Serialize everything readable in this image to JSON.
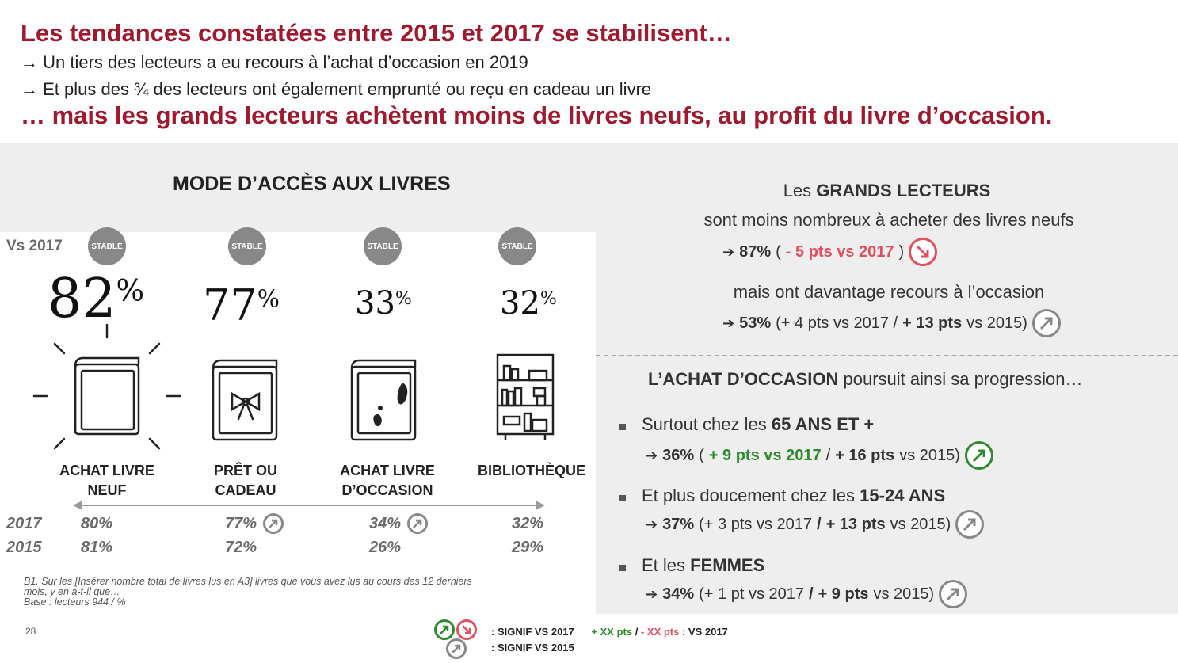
{
  "header": {
    "title1": "Les tendances constatées entre 2015 et 2017 se stabilisent…",
    "sub1": "→ Un tiers des lecteurs a eu recours à l’achat d’occasion en 2019",
    "sub2": "→ Et plus des ¾ des lecteurs ont également emprunté ou reçu en cadeau un livre",
    "title2": "… mais les grands lecteurs achètent moins de livres neufs, au profit du livre d’occasion."
  },
  "left": {
    "title": "MODE D’ACCÈS AUX LIVRES",
    "vs_label": "Vs 2017",
    "stable_label": "STABLE",
    "items": [
      {
        "pct": "82",
        "label1": "ACHAT LIVRE",
        "label2": "NEUF",
        "v2017": "80%",
        "v2015": "81%",
        "icon": "new-book-icon"
      },
      {
        "pct": "77",
        "label1": "PRÊT OU",
        "label2": "CADEAU",
        "v2017": "77%",
        "v2015": "72%",
        "icon": "gift-book-icon"
      },
      {
        "pct": "33",
        "label1": "ACHAT LIVRE",
        "label2": "D’OCCASION",
        "v2017": "34%",
        "v2015": "26%",
        "icon": "used-book-icon"
      },
      {
        "pct": "32",
        "label1": "BIBLIOTHÈQUE",
        "label2": "",
        "v2017": "32%",
        "v2015": "29%",
        "icon": "library-shelf-icon"
      }
    ],
    "pct_symbol": "%",
    "year1": "2017",
    "year2": "2015",
    "note1": "B1. Sur les [Insérer nombre total de livres lus en A3] livres que vous avez lus au cours des 12 derniers",
    "note2": "mois, y en a-t-il que…",
    "note3": "Base : lecteurs 944 / %",
    "page_number": "28"
  },
  "right": {
    "gl_pre": "Les ",
    "gl_bold": "GRANDS LECTEURS",
    "gl_line2": "sont moins nombreux à acheter des livres neufs",
    "gl_stat1_val": "87%",
    "gl_stat1_open": " (",
    "gl_stat1_delta": "- 5 pts vs 2017",
    "gl_stat1_close": ")",
    "gl_line3": "mais ont davantage recours à l’occasion",
    "gl_stat2_val": "53%",
    "gl_stat2_a": " (+ 4 pts vs 2017 / ",
    "gl_stat2_b": "+ 13 pts",
    "gl_stat2_c": " vs 2015)",
    "ao_bold": "L’ACHAT D’OCCASION",
    "ao_rest": " poursuit ainsi sa progression…",
    "b1_pre": "Surtout chez les ",
    "b1_bold": "65 ANS ET +",
    "b1_val": "36%",
    "b1_open": " (",
    "b1_delta": "+ 9 pts vs 2017",
    "b1_sep": " / ",
    "b1_b": "+ 16 pts",
    "b1_c": " vs 2015)",
    "b2_pre": "Et plus doucement chez les ",
    "b2_bold": "15-24 ANS",
    "b2_val": "37%",
    "b2_a": " (+ 3 pts vs 2017 ",
    "b2_sep": "/ ",
    "b2_b": "+ 13 pts",
    "b2_c": " vs 2015)",
    "b3_pre": "Et les ",
    "b3_bold": "FEMMES",
    "b3_val": "34%",
    "b3_a": " (+ 1 pt vs 2017 ",
    "b3_sep": "/ ",
    "b3_b": "+ 9 pts",
    "b3_c": " vs 2015)"
  },
  "legend": {
    "signif2017": ": SIGNIF VS 2017",
    "plus": "+ XX pts",
    "slash": " / ",
    "minus": "- XX pts",
    "vs2017": " : VS 2017",
    "signif2015": ": SIGNIF VS 2015"
  },
  "colors": {
    "title_red": "#a0192e",
    "positive_green": "#2e8b2e",
    "negative_red": "#e05060",
    "panel_grey": "#eeeeee"
  }
}
